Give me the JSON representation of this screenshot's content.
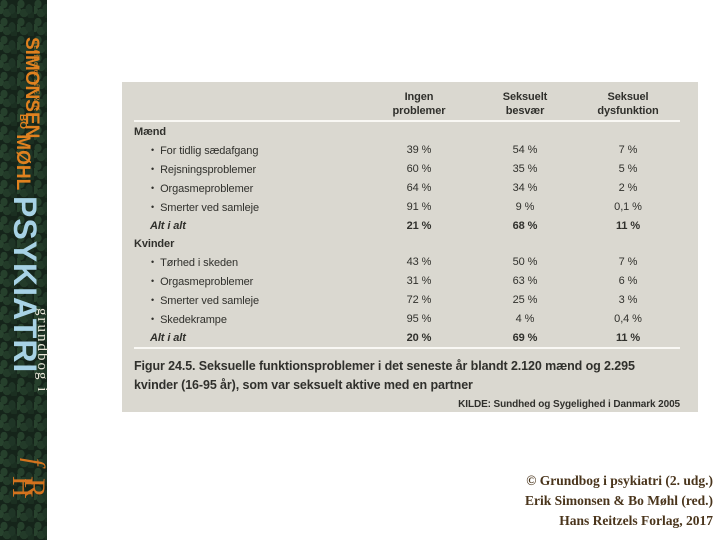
{
  "spine": {
    "edited_by": "redigeret af ERIK",
    "author1": "SIMONSEN",
    "author2_prefix": "BO",
    "author2": "MØHL",
    "series": "grundbog i",
    "title": "PSYKIATRI",
    "publisher_monogram": "HfR",
    "colors": {
      "background_green": "#15241a",
      "orange": "#e0811f",
      "light_blue": "#a7d2e5",
      "cream": "#eae7da"
    }
  },
  "table": {
    "columns": [
      "Ingen\nproblemer",
      "Seksuelt\nbesvær",
      "Seksuel\ndysfunktion"
    ],
    "sections": [
      {
        "label": "Mænd",
        "rows": [
          {
            "label": "For tidlig sædafgang",
            "values": [
              "39 %",
              "54 %",
              "7 %"
            ]
          },
          {
            "label": "Rejsningsproblemer",
            "values": [
              "60 %",
              "35 %",
              "5 %"
            ]
          },
          {
            "label": "Orgasmeproblemer",
            "values": [
              "64 %",
              "34 %",
              "2 %"
            ]
          },
          {
            "label": "Smerter ved samleje",
            "values": [
              "91 %",
              "9 %",
              "0,1 %"
            ]
          }
        ],
        "total": {
          "label": "Alt i alt",
          "values": [
            "21 %",
            "68 %",
            "11 %"
          ]
        }
      },
      {
        "label": "Kvinder",
        "rows": [
          {
            "label": "Tørhed i skeden",
            "values": [
              "43 %",
              "50 %",
              "7 %"
            ]
          },
          {
            "label": "Orgasmeproblemer",
            "values": [
              "31 %",
              "63 %",
              "6 %"
            ]
          },
          {
            "label": "Smerter ved samleje",
            "values": [
              "72 %",
              "25 %",
              "3 %"
            ]
          },
          {
            "label": "Skedekrampe",
            "values": [
              "95 %",
              "4 %",
              "0,4 %"
            ]
          }
        ],
        "total": {
          "label": "Alt i alt",
          "values": [
            "20 %",
            "69 %",
            "11 %"
          ]
        }
      }
    ],
    "caption": "Figur 24.5. Seksuelle funktionsproblemer i det seneste år blandt 2.120 mænd og 2.295 kvinder (16-95 år), som var seksuelt aktive med en partner",
    "source": "KILDE: Sundhed og Sygelighed i Danmark 2005",
    "panel_background": "#dad8d0"
  },
  "footer": {
    "lines": [
      "© Grundbog i psykiatri (2. udg.)",
      "Erik Simonsen & Bo Møhl (red.)",
      "Hans Reitzels Forlag, 2017"
    ]
  }
}
